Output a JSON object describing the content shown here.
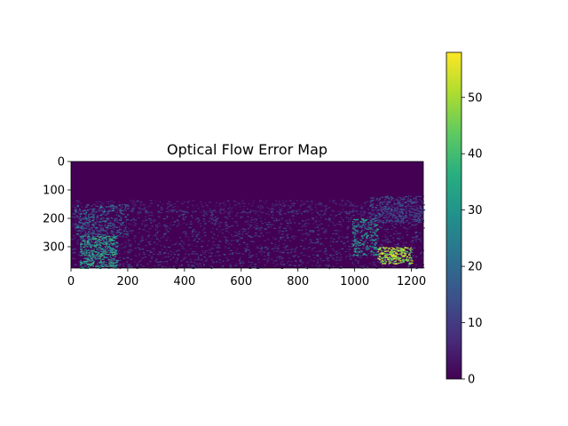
{
  "chart_data": {
    "type": "heatmap",
    "title": "Optical Flow Error Map",
    "xlabel": "",
    "ylabel": "",
    "image_extent": {
      "x": [
        0,
        1242
      ],
      "y": [
        0,
        375
      ]
    },
    "xticks": [
      0,
      200,
      400,
      600,
      800,
      1000,
      1200
    ],
    "yticks": [
      0,
      100,
      200,
      300
    ],
    "colormap": "viridis",
    "colorbar": {
      "range": [
        0,
        58
      ],
      "ticks": [
        0,
        10,
        20,
        30,
        40,
        50
      ]
    },
    "content_description": [
      {
        "region": "rows 0-130 (sky)",
        "error": 0
      },
      {
        "region": "rows 130-375 (scene)",
        "error": "sparse speckle mostly 5-15"
      },
      {
        "region": "left, x 30-160, y 260-375",
        "error": "sparse speckle 25-40"
      },
      {
        "region": "right, x 1080-1200, y 300-360",
        "error": "sparse speckle 45-58"
      }
    ],
    "grid": false
  }
}
